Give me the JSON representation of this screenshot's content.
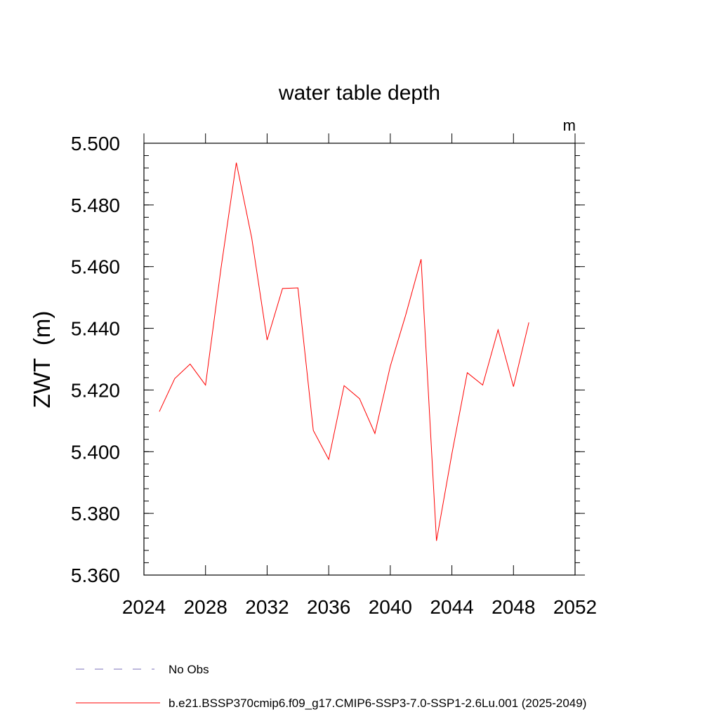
{
  "chart_data": {
    "type": "line",
    "title": "water table depth",
    "units_label": "m",
    "ylabel": "ZWT  (m)",
    "xlabel": "",
    "xlim": [
      2024,
      2052
    ],
    "ylim": [
      5.36,
      5.5
    ],
    "xticks": [
      2024,
      2028,
      2032,
      2036,
      2040,
      2044,
      2048,
      2052
    ],
    "xtick_labels": [
      "2024",
      "2028",
      "2032",
      "2036",
      "2040",
      "2044",
      "2048",
      "2052"
    ],
    "yticks": [
      5.36,
      5.38,
      5.4,
      5.42,
      5.44,
      5.46,
      5.48,
      5.5
    ],
    "ytick_labels": [
      "5.360",
      "5.380",
      "5.400",
      "5.420",
      "5.440",
      "5.460",
      "5.480",
      "5.500"
    ],
    "grid": false,
    "legend_position": "bottom",
    "series": [
      {
        "name": "b.e21.BSSP370cmip6.f09_g17.CMIP6-SSP3-7.0-SSP1-2.6Lu.001 (2025-2049)",
        "color": "#ff0000",
        "x": [
          2025,
          2026,
          2027,
          2028,
          2029,
          2030,
          2031,
          2032,
          2033,
          2034,
          2035,
          2036,
          2037,
          2038,
          2039,
          2040,
          2041,
          2042,
          2043,
          2044,
          2045,
          2046,
          2047,
          2048,
          2049
        ],
        "y": [
          5.413,
          5.4237,
          5.4284,
          5.4216,
          5.4593,
          5.4937,
          5.4693,
          5.4362,
          5.4529,
          5.4531,
          5.4069,
          5.3975,
          5.4214,
          5.4172,
          5.4059,
          5.4277,
          5.4443,
          5.4624,
          5.3711,
          5.3993,
          5.4256,
          5.4216,
          5.4395,
          5.4211,
          5.4419
        ]
      }
    ],
    "legend": [
      {
        "label": "No Obs",
        "color": "#7a6fb8",
        "style": "dashed"
      },
      {
        "label": "b.e21.BSSP370cmip6.f09_g17.CMIP6-SSP3-7.0-SSP1-2.6Lu.001 (2025-2049)",
        "color": "#ff0000",
        "style": "solid"
      }
    ]
  }
}
